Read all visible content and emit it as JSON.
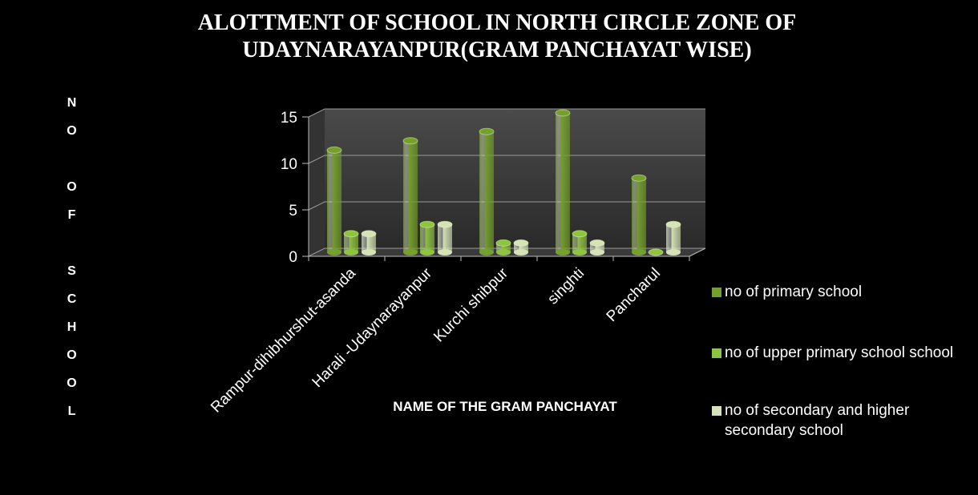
{
  "chart_data": {
    "type": "bar",
    "title": "ALOTTMENT OF SCHOOL IN NORTH CIRCLE ZONE OF UDAYNARAYANPUR(GRAM PANCHAYAT WISE)",
    "ylabel": "NO OF SCHOOL",
    "xlabel": "NAME OF THE GRAM PANCHAYAT",
    "categories": [
      "Rampur-dihibhurshut-asanda",
      "Harali -Udaynarayanpur",
      "Kurchi shibpur",
      "singhti",
      "Pancharul"
    ],
    "series": [
      {
        "name": "no of primary school",
        "color": "#76a02c",
        "values": [
          11,
          12,
          13,
          15,
          8
        ]
      },
      {
        "name": "no of upper primary school school",
        "color": "#8fc43f",
        "values": [
          2,
          3,
          1,
          2,
          0
        ]
      },
      {
        "name": "no of secondary and higher secondary school",
        "color": "#d6e3b6",
        "values": [
          2,
          3,
          1,
          1,
          3
        ]
      }
    ],
    "ylim": [
      0,
      15
    ],
    "yticks": [
      0,
      5,
      10,
      15
    ],
    "grid": true
  }
}
